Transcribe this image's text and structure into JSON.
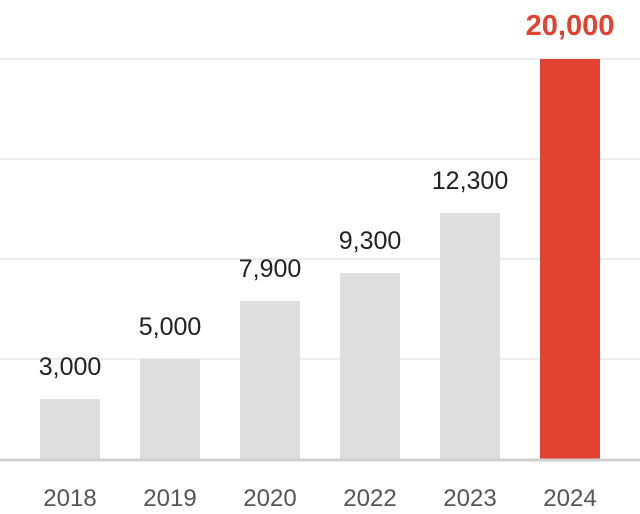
{
  "chart_data": {
    "type": "bar",
    "categories": [
      "2018",
      "2019",
      "2020",
      "2022",
      "2023",
      "2024"
    ],
    "values": [
      3000,
      5000,
      7900,
      9300,
      12300,
      20000
    ],
    "value_labels": [
      "3,000",
      "5,000",
      "7,900",
      "9,300",
      "12,300",
      "20,000"
    ],
    "title": "",
    "xlabel": "",
    "ylabel": "",
    "ylim": [
      0,
      20000
    ],
    "grid": true,
    "highlight_index": 5,
    "colors": {
      "bar": "#dedede",
      "highlight": "#e24331",
      "label": "#222222",
      "tick": "#555555",
      "grid": "#e6e6e6",
      "baseline": "#d0d0d0"
    }
  }
}
